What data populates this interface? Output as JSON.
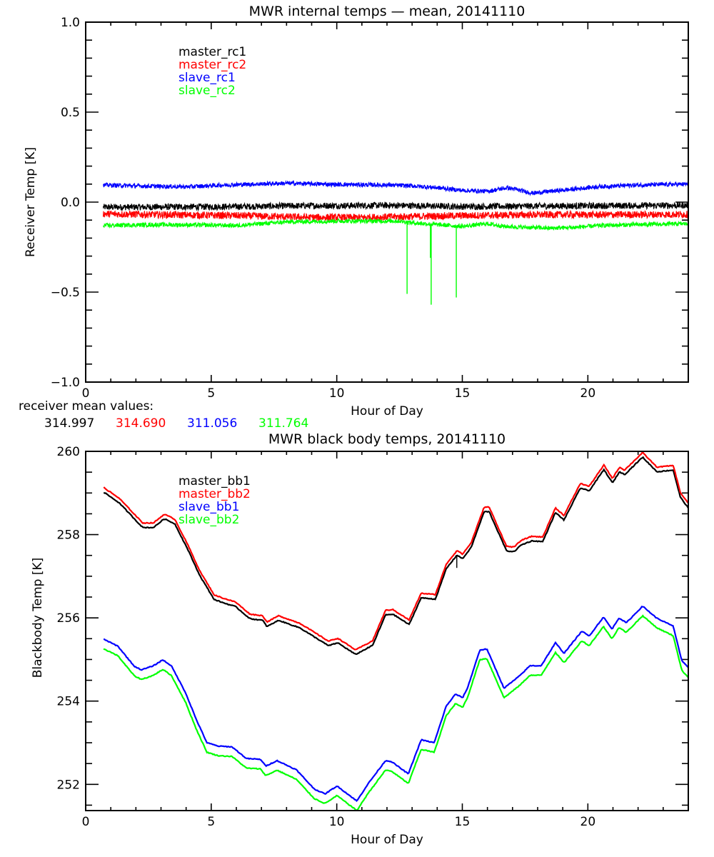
{
  "chart_data": [
    {
      "type": "line",
      "title": "MWR internal temps — mean, 20141110",
      "xlabel": "Hour of Day",
      "ylabel": "Receiver Temp [K]",
      "xlim": [
        0,
        24
      ],
      "ylim": [
        -1.0,
        1.0
      ],
      "xticks": [
        0,
        5,
        10,
        15,
        20
      ],
      "xtick_labels": [
        "0",
        "5",
        "10",
        "15",
        "20"
      ],
      "yticks": [
        -1.0,
        -0.5,
        0.0,
        0.5,
        1.0
      ],
      "ytick_labels": [
        "−1.0",
        "−0.5",
        "0.0",
        "0.5",
        "1.0"
      ],
      "x_minor_step": 1,
      "y_minor_step": 0.1,
      "grid": false,
      "legend_position": "top-left",
      "series": [
        {
          "name": "master_rc1",
          "color": "#000000",
          "noise": 0.018,
          "x": [
            0.7,
            3,
            6,
            9,
            12,
            13,
            15,
            18,
            21,
            24
          ],
          "y": [
            -0.028,
            -0.027,
            -0.025,
            -0.02,
            -0.018,
            -0.02,
            -0.025,
            -0.022,
            -0.02,
            -0.018
          ]
        },
        {
          "name": "master_rc2",
          "color": "#ff0000",
          "noise": 0.02,
          "x": [
            0.7,
            3,
            6,
            9,
            11,
            13,
            15,
            18,
            21,
            24
          ],
          "y": [
            -0.065,
            -0.07,
            -0.075,
            -0.085,
            -0.085,
            -0.08,
            -0.075,
            -0.07,
            -0.07,
            -0.068
          ]
        },
        {
          "name": "slave_rc1",
          "color": "#0000ff",
          "noise": 0.012,
          "x": [
            0.7,
            2,
            4,
            5.5,
            8,
            10,
            12,
            13,
            14,
            15,
            16,
            16.8,
            17.8,
            18.5,
            19.3,
            20.3,
            22,
            24
          ],
          "y": [
            0.095,
            0.09,
            0.085,
            0.095,
            0.105,
            0.098,
            0.095,
            0.09,
            0.08,
            0.065,
            0.06,
            0.08,
            0.05,
            0.06,
            0.07,
            0.085,
            0.095,
            0.1
          ]
        },
        {
          "name": "slave_rc2",
          "color": "#00ff00",
          "noise": 0.012,
          "x": [
            0.7,
            3,
            6,
            8,
            10,
            12.5,
            13,
            14,
            15,
            16,
            16.7,
            17.5,
            18.5,
            19.5,
            20.5,
            22,
            24
          ],
          "y": [
            -0.13,
            -0.125,
            -0.13,
            -0.11,
            -0.105,
            -0.105,
            -0.115,
            -0.125,
            -0.135,
            -0.12,
            -0.135,
            -0.14,
            -0.145,
            -0.14,
            -0.13,
            -0.125,
            -0.12
          ],
          "spikes": [
            {
              "x": 12.8,
              "y": -0.51
            },
            {
              "x": 13.76,
              "y": -0.57
            },
            {
              "x": 13.73,
              "y": -0.31
            },
            {
              "x": 14.76,
              "y": -0.53
            }
          ]
        }
      ],
      "annotation": {
        "label": "receiver mean values:",
        "values": [
          {
            "text": "314.997",
            "color": "#000000"
          },
          {
            "text": "314.690",
            "color": "#ff0000"
          },
          {
            "text": "311.056",
            "color": "#0000ff"
          },
          {
            "text": "311.764",
            "color": "#00ff00"
          }
        ]
      }
    },
    {
      "type": "line",
      "title": "MWR black body temps, 20141110",
      "xlabel": "Hour of Day",
      "ylabel": "Blackbody Temp [K]",
      "xlim": [
        0,
        24
      ],
      "ylim": [
        251.37,
        260
      ],
      "xticks": [
        0,
        5,
        10,
        15,
        20
      ],
      "xtick_labels": [
        "0",
        "5",
        "10",
        "15",
        "20"
      ],
      "yticks": [
        252,
        254,
        256,
        258,
        260
      ],
      "ytick_labels": [
        "252",
        "254",
        "256",
        "258",
        "260"
      ],
      "x_minor_step": 1,
      "y_minor_step": 0.5,
      "grid": false,
      "legend_position": "top-left",
      "series": [
        {
          "name": "master_bb1",
          "color": "#000000",
          "offset_from": "master_bb2",
          "offset": -0.11,
          "spikes": [
            {
              "x": 14.78,
              "y": 257.2
            }
          ]
        },
        {
          "name": "master_bb2",
          "color": "#ff0000",
          "x": [
            0.72,
            1.34,
            2.27,
            2.7,
            3.13,
            3.55,
            4.07,
            4.55,
            5.12,
            5.49,
            5.97,
            6.54,
            7.05,
            7.22,
            7.68,
            8.53,
            9.67,
            10.04,
            10.75,
            11.43,
            11.94,
            12.23,
            12.88,
            13.36,
            13.93,
            14.36,
            14.79,
            15.01,
            15.35,
            15.87,
            16.07,
            16.76,
            17.06,
            17.34,
            17.77,
            18.2,
            18.71,
            19.05,
            19.7,
            20.05,
            20.64,
            20.98,
            21.26,
            21.46,
            22.18,
            22.75,
            23.4,
            23.69,
            24.0
          ],
          "y": [
            259.13,
            258.87,
            258.28,
            258.28,
            258.49,
            258.37,
            257.75,
            257.12,
            256.55,
            256.47,
            256.38,
            256.09,
            256.05,
            255.9,
            256.05,
            255.87,
            255.44,
            255.51,
            255.23,
            255.45,
            256.18,
            256.2,
            255.95,
            256.59,
            256.56,
            257.29,
            257.62,
            257.53,
            257.8,
            258.66,
            258.66,
            257.72,
            257.7,
            257.86,
            257.96,
            257.94,
            258.64,
            258.46,
            259.23,
            259.16,
            259.67,
            259.35,
            259.62,
            259.55,
            259.97,
            259.62,
            259.66,
            259.0,
            258.75
          ]
        },
        {
          "name": "slave_bb1",
          "color": "#0000ff",
          "x": [
            0.71,
            1.28,
            1.93,
            2.22,
            2.7,
            3.07,
            3.41,
            3.98,
            4.41,
            4.83,
            5.26,
            5.83,
            6.4,
            6.97,
            7.17,
            7.62,
            8.39,
            9.1,
            9.53,
            10.01,
            10.8,
            11.23,
            11.94,
            12.17,
            12.85,
            13.36,
            13.88,
            14.36,
            14.73,
            15.01,
            15.21,
            15.7,
            15.98,
            16.66,
            17.29,
            17.69,
            18.14,
            18.71,
            19.05,
            19.76,
            20.05,
            20.62,
            20.96,
            21.24,
            21.53,
            22.18,
            22.75,
            23.4,
            23.74,
            24.0
          ],
          "y": [
            255.49,
            255.32,
            254.84,
            254.75,
            254.85,
            254.99,
            254.85,
            254.2,
            253.55,
            253.0,
            252.92,
            252.9,
            252.62,
            252.6,
            252.44,
            252.57,
            252.35,
            251.89,
            251.77,
            251.96,
            251.6,
            252.0,
            252.57,
            252.55,
            252.25,
            253.07,
            253.0,
            253.88,
            254.17,
            254.08,
            254.32,
            255.23,
            255.25,
            254.31,
            254.61,
            254.85,
            254.85,
            255.4,
            255.15,
            255.68,
            255.56,
            256.02,
            255.73,
            256.0,
            255.88,
            256.28,
            255.99,
            255.8,
            254.97,
            254.8
          ]
        },
        {
          "name": "slave_bb2",
          "color": "#00ff00",
          "offset_from": "slave_bb1",
          "offset": -0.23
        }
      ]
    }
  ]
}
